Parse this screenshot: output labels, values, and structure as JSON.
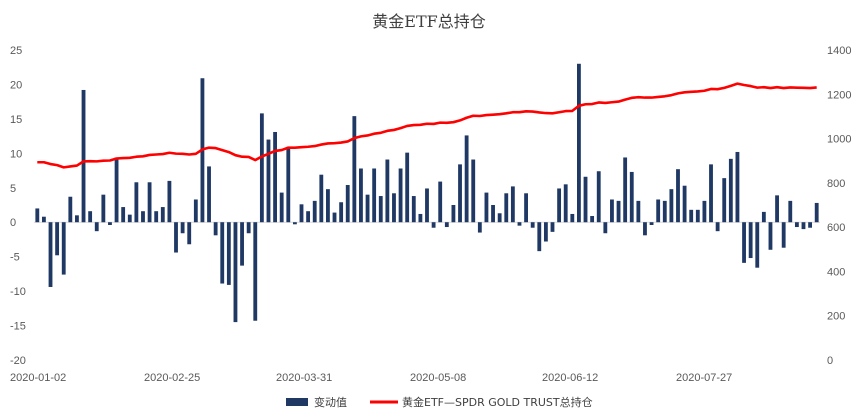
{
  "chart_data": {
    "type": "bar+line",
    "title": "黄金ETF总持仓",
    "x_tick_labels": [
      "2020-01-02",
      "2020-02-25",
      "2020-03-31",
      "2020-05-08",
      "2020-06-12",
      "2020-07-27"
    ],
    "y_left": {
      "min": -20,
      "max": 25,
      "step": 5,
      "ticks": [
        "-20",
        "-15",
        "-10",
        "-5",
        "0",
        "5",
        "10",
        "15",
        "20",
        "25"
      ]
    },
    "y_right": {
      "min": 0,
      "max": 1400,
      "step": 200,
      "ticks": [
        "0",
        "200",
        "400",
        "600",
        "800",
        "1000",
        "1200",
        "1400"
      ]
    },
    "legend": {
      "position": "bottom",
      "bar_label": "变动值",
      "line_label": "黄金ETF—SPDR GOLD TRUST总持仓"
    },
    "colors": {
      "bar": "#1f3864",
      "line": "#ff0000",
      "axis": "#d9d9d9",
      "text": "#595959"
    },
    "series": [
      {
        "name": "变动值",
        "type": "bar",
        "values": [
          2.0,
          0.8,
          -9.4,
          -4.8,
          -7.6,
          3.7,
          1.0,
          19.2,
          1.6,
          -1.3,
          4.0,
          -0.4,
          9.4,
          2.2,
          1.1,
          5.8,
          1.6,
          5.8,
          1.6,
          2.2,
          6.0,
          -4.4,
          -1.6,
          -3.2,
          3.3,
          20.9,
          8.1,
          -1.9,
          -8.9,
          -9.1,
          -14.5,
          -6.3,
          -1.6,
          -14.3,
          15.8,
          12.0,
          13.1,
          4.3,
          10.8,
          -0.3,
          2.6,
          1.6,
          3.1,
          6.9,
          4.8,
          1.4,
          2.9,
          5.4,
          15.4,
          7.8,
          4.0,
          7.8,
          3.8,
          9.1,
          4.2,
          7.8,
          10.1,
          3.8,
          1.2,
          4.9,
          -0.8,
          5.9,
          -0.7,
          2.5,
          8.4,
          12.6,
          9.1,
          -1.5,
          4.3,
          2.5,
          1.3,
          4.2,
          5.2,
          -0.5,
          4.2,
          -0.8,
          -4.2,
          -2.8,
          -1.4,
          4.9,
          5.5,
          1.2,
          23.0,
          6.6,
          0.9,
          7.4,
          -1.6,
          3.3,
          3.1,
          9.4,
          7.3,
          3.1,
          -1.9,
          -0.4,
          3.3,
          3.1,
          4.8,
          7.7,
          5.3,
          1.8,
          1.8,
          3.1,
          8.4,
          -1.3,
          6.4,
          9.2,
          10.2,
          -5.9,
          -5.2,
          -6.6,
          1.5,
          -4.0,
          3.9,
          -3.7,
          3.1,
          -0.7,
          -1.0,
          -0.8,
          2.8
        ]
      },
      {
        "name": "黄金ETF—SPDR GOLD TRUST总持仓",
        "type": "line",
        "values": [
          893,
          893,
          885,
          880,
          870,
          874,
          878,
          897,
          898,
          897,
          900,
          901,
          910,
          912,
          913,
          918,
          920,
          926,
          928,
          930,
          936,
          932,
          931,
          928,
          931,
          951,
          959,
          957,
          948,
          939,
          925,
          918,
          917,
          903,
          919,
          931,
          944,
          948,
          959,
          959,
          961,
          963,
          966,
          973,
          978,
          979,
          982,
          987,
          1002,
          1010,
          1014,
          1022,
          1026,
          1035,
          1039,
          1047,
          1057,
          1061,
          1062,
          1067,
          1066,
          1072,
          1071,
          1074,
          1082,
          1094,
          1103,
          1102,
          1106,
          1108,
          1110,
          1114,
          1119,
          1119,
          1123,
          1122,
          1118,
          1115,
          1114,
          1119,
          1124,
          1125,
          1148,
          1155,
          1156,
          1163,
          1161,
          1164,
          1167,
          1176,
          1184,
          1187,
          1185,
          1185,
          1188,
          1191,
          1196,
          1204,
          1209,
          1211,
          1213,
          1216,
          1224,
          1223,
          1229,
          1238,
          1248,
          1242,
          1237,
          1230,
          1232,
          1228,
          1232,
          1228,
          1231,
          1230,
          1229,
          1228,
          1231
        ]
      }
    ]
  }
}
